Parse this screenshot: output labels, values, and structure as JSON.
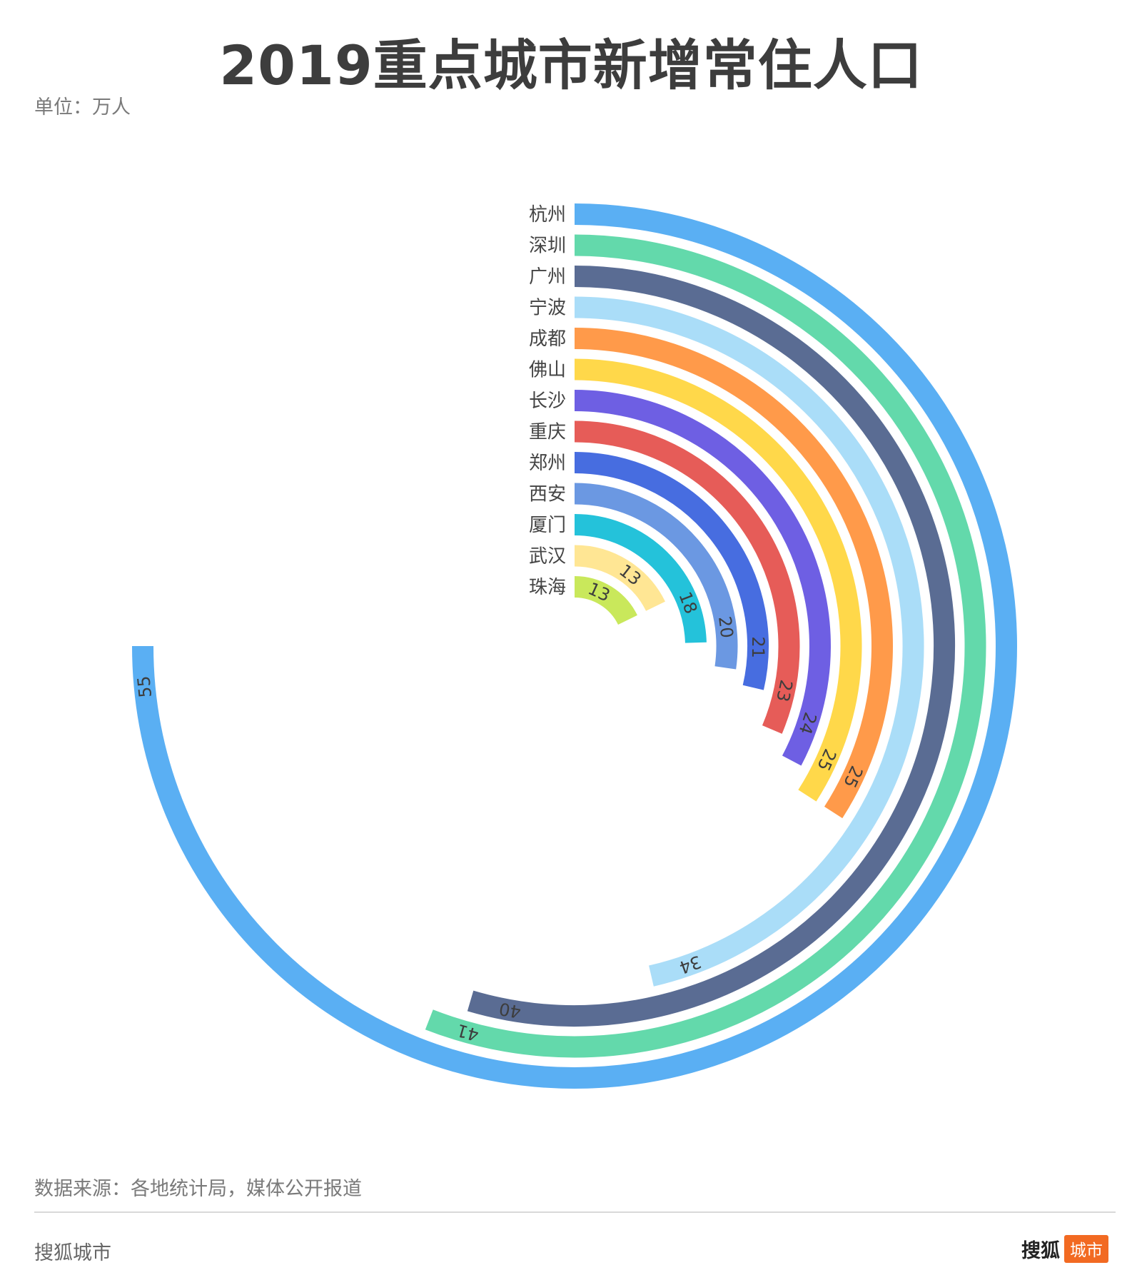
{
  "title": "2019重点城市新增常住人口",
  "unit_label": "单位：万人",
  "source": "数据来源：各地统计局，媒体公开报道",
  "footer": {
    "left": "搜狐城市",
    "logo_main": "搜狐",
    "logo_badge": "城市"
  },
  "chart_data": {
    "type": "radial-bar",
    "title": "2019重点城市新增常住人口",
    "unit": "万人",
    "max_value": 55,
    "categories": [
      "杭州",
      "深圳",
      "广州",
      "宁波",
      "成都",
      "佛山",
      "长沙",
      "重庆",
      "郑州",
      "西安",
      "厦门",
      "武汉",
      "珠海"
    ],
    "values": [
      55,
      41,
      40,
      34,
      25,
      25,
      24,
      23,
      21,
      20,
      18,
      13,
      13
    ],
    "colors": [
      "#5aaff3",
      "#63d9ab",
      "#5a6c93",
      "#aaddf8",
      "#ff9a4a",
      "#ffd84a",
      "#6e5fe3",
      "#e65c58",
      "#476de0",
      "#6b98e2",
      "#24c2da",
      "#ffe694",
      "#c9e85b"
    ]
  }
}
